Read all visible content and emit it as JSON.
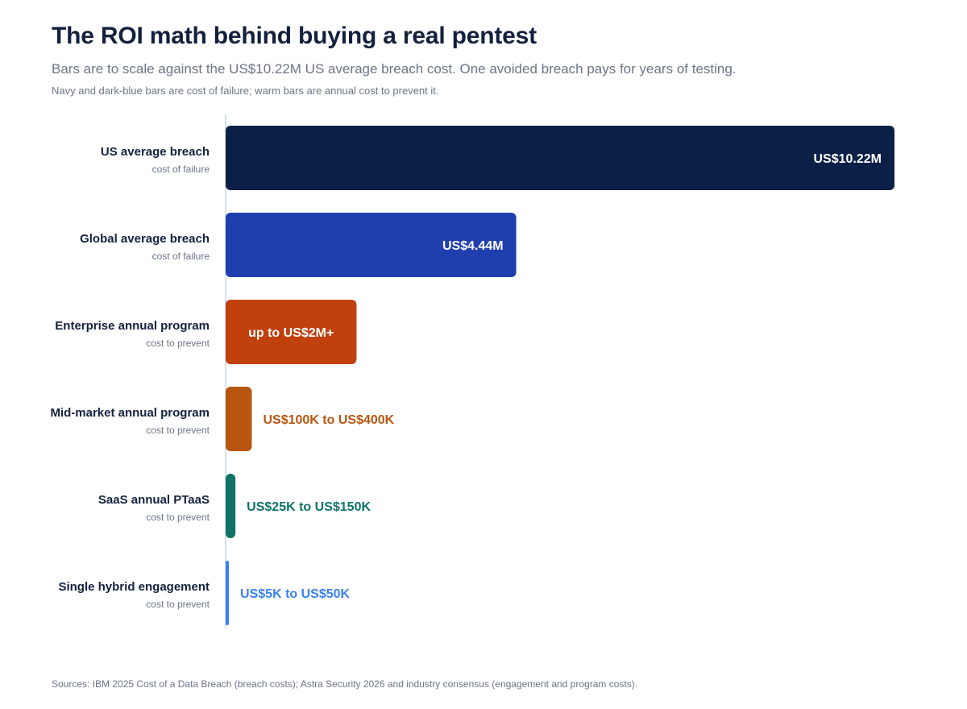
{
  "header": {
    "title": "The ROI math behind buying a real pentest",
    "subtitle": "Bars are to scale against the US$10.22M US average breach cost. One avoided breach pays for years of testing.",
    "note": "Navy and dark-blue bars are cost of failure; warm bars are annual cost to prevent it."
  },
  "footer": {
    "source": "Sources: IBM 2025 Cost of a Data Breach (breach costs); Astra Security 2026 and industry consensus (engagement and program costs)."
  },
  "chart_data": {
    "type": "bar",
    "orientation": "horizontal",
    "scale_max": 10.22,
    "unit": "US$ millions",
    "grid": false,
    "legend": "none",
    "bars": [
      {
        "label": "US average breach",
        "sublabel": "cost of failure",
        "value": 10.22,
        "value_label": "US$10.22M",
        "color": "#0c1f46",
        "label_color": "#ffffff",
        "label_inside": true,
        "text_align": "end"
      },
      {
        "label": "Global average breach",
        "sublabel": "cost of failure",
        "value": 4.44,
        "value_label": "US$4.44M",
        "color": "#1f3fae",
        "label_color": "#ffffff",
        "label_inside": true,
        "text_align": "end"
      },
      {
        "label": "Enterprise annual program",
        "sublabel": "cost to prevent",
        "value": 2.0,
        "value_label": "up to US$2M+",
        "color": "#c0400e",
        "label_color": "#ffffff",
        "label_inside": true,
        "text_align": "center"
      },
      {
        "label": "Mid-market annual program",
        "sublabel": "cost to prevent",
        "value": 0.4,
        "value_label": "US$100K to US$400K",
        "color": "#b8560f",
        "label_color": "#b8560f",
        "label_inside": false
      },
      {
        "label": "SaaS annual PTaaS",
        "sublabel": "cost to prevent",
        "value": 0.15,
        "value_label": "US$25K to US$150K",
        "color": "#0f7466",
        "label_color": "#0f7466",
        "label_inside": false
      },
      {
        "label": "Single hybrid engagement",
        "sublabel": "cost to prevent",
        "value": 0.05,
        "value_label": "US$5K to US$50K",
        "color": "#3a82f0",
        "label_color": "#3a82f0",
        "label_inside": false
      }
    ]
  }
}
